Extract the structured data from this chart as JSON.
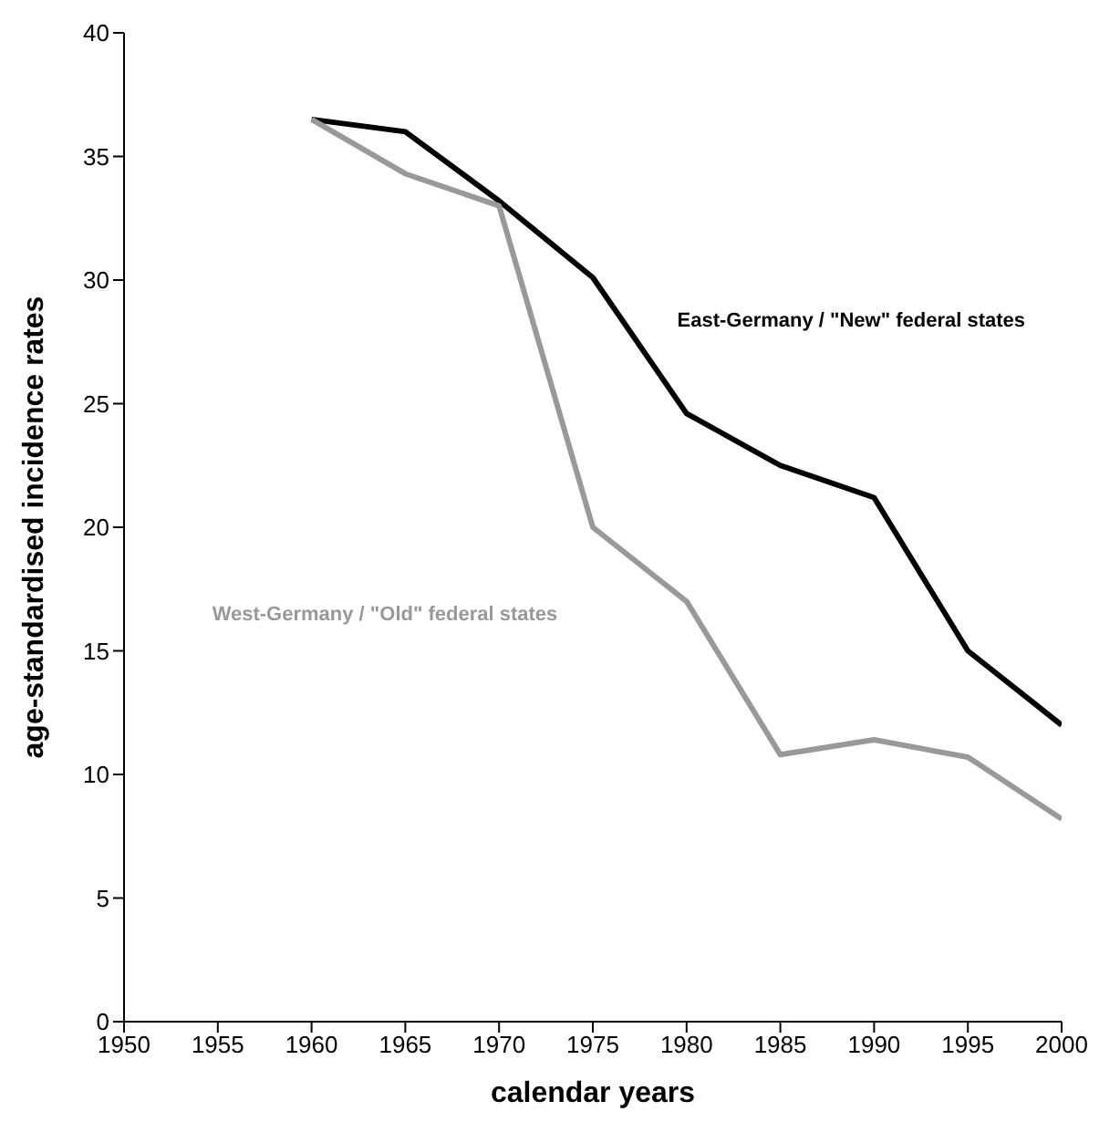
{
  "chart_data": {
    "type": "line",
    "xlabel": "calendar years",
    "ylabel": "age-standardised incidence rates",
    "x": [
      1960,
      1965,
      1970,
      1975,
      1980,
      1985,
      1990,
      1995,
      2000
    ],
    "series": [
      {
        "name": "East-Germany / \"New\" federal states",
        "color": "#000000",
        "values": [
          36.5,
          36.0,
          33.2,
          30.1,
          24.6,
          22.5,
          21.2,
          15.0,
          12.0
        ]
      },
      {
        "name": "West-Germany / \"Old\" federal states",
        "color": "#999999",
        "values": [
          36.5,
          34.3,
          33.0,
          20.0,
          17.0,
          10.8,
          11.4,
          10.7,
          8.2
        ]
      }
    ],
    "xlim": [
      1950,
      2000
    ],
    "xticks": [
      1950,
      1955,
      1960,
      1965,
      1970,
      1975,
      1980,
      1985,
      1990,
      1995,
      2000
    ],
    "ylim": [
      0,
      40
    ],
    "yticks": [
      0,
      5,
      10,
      15,
      20,
      25,
      30,
      35,
      40
    ],
    "grid": false,
    "legend": false,
    "marker": "none",
    "line_style": "solid"
  }
}
